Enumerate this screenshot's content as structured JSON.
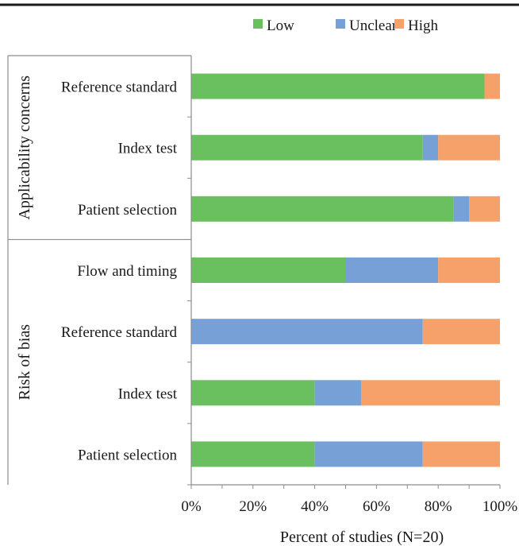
{
  "chart_data": {
    "type": "bar",
    "orientation": "horizontal",
    "stacked": true,
    "percent_stacked": true,
    "title": "",
    "xlabel": "Percent of studies (N=20)",
    "xlim": [
      0,
      100
    ],
    "xticks": [
      "0%",
      "20%",
      "40%",
      "60%",
      "80%",
      "100%"
    ],
    "grid": false,
    "legend_position": "top-right",
    "groups": [
      {
        "name": "Applicability concerns",
        "categories": [
          "Reference standard",
          "Index test",
          "Patient selection"
        ]
      },
      {
        "name": "Risk of bias",
        "categories": [
          "Flow and timing",
          "Reference standard",
          "Index test",
          "Patient selection"
        ]
      }
    ],
    "categories": [
      "Reference standard",
      "Index test",
      "Patient selection",
      "Flow and timing",
      "Reference standard",
      "Index test",
      "Patient selection"
    ],
    "series": [
      {
        "name": "Low",
        "color": "#6abf5e",
        "values": [
          95,
          75,
          85,
          50,
          0,
          40,
          40
        ]
      },
      {
        "name": "Unclear",
        "color": "#76a0d6",
        "values": [
          0,
          5,
          5,
          30,
          75,
          15,
          35
        ]
      },
      {
        "name": "High",
        "color": "#f6a06a",
        "values": [
          5,
          20,
          10,
          20,
          25,
          45,
          25
        ]
      }
    ]
  }
}
